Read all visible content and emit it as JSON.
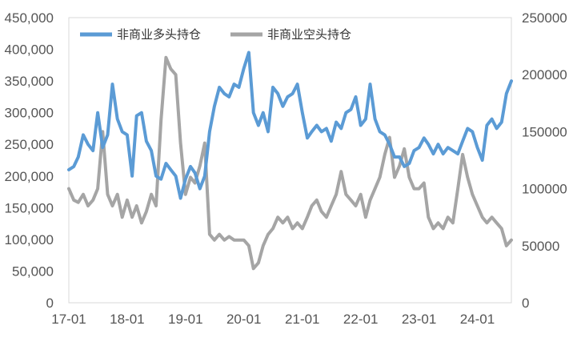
{
  "chart_data": {
    "type": "line",
    "title": "",
    "xlabel": "",
    "ylabel": "",
    "x_ticks": [
      "17-01",
      "18-01",
      "19-01",
      "20-01",
      "21-01",
      "22-01",
      "23-01",
      "24-01"
    ],
    "y_left": {
      "ticks": [
        "0",
        "50,000",
        "100,000",
        "150,000",
        "200,000",
        "250,000",
        "300,000",
        "350,000",
        "400,000",
        "450,000"
      ],
      "lim": [
        0,
        450000
      ]
    },
    "y_right": {
      "ticks": [
        "0",
        "50000",
        "100000",
        "150000",
        "200000",
        "250000"
      ],
      "lim": [
        0,
        250000
      ]
    },
    "legend": {
      "placement": "top-left"
    },
    "grid": false,
    "series": [
      {
        "name": "非商业多头持仓",
        "axis": "left",
        "color": "#5b9bd5",
        "points": [
          [
            "2017-01",
            210000
          ],
          [
            "2017-02",
            215000
          ],
          [
            "2017-03",
            230000
          ],
          [
            "2017-04",
            265000
          ],
          [
            "2017-05",
            250000
          ],
          [
            "2017-06",
            240000
          ],
          [
            "2017-07",
            300000
          ],
          [
            "2017-08",
            245000
          ],
          [
            "2017-09",
            265000
          ],
          [
            "2017-10",
            345000
          ],
          [
            "2017-11",
            290000
          ],
          [
            "2017-12",
            270000
          ],
          [
            "2018-01",
            265000
          ],
          [
            "2018-02",
            200000
          ],
          [
            "2018-03",
            295000
          ],
          [
            "2018-04",
            300000
          ],
          [
            "2018-05",
            255000
          ],
          [
            "2018-06",
            240000
          ],
          [
            "2018-07",
            200000
          ],
          [
            "2018-08",
            195000
          ],
          [
            "2018-09",
            220000
          ],
          [
            "2018-10",
            210000
          ],
          [
            "2018-11",
            200000
          ],
          [
            "2018-12",
            165000
          ],
          [
            "2019-01",
            195000
          ],
          [
            "2019-02",
            215000
          ],
          [
            "2019-03",
            205000
          ],
          [
            "2019-04",
            180000
          ],
          [
            "2019-05",
            200000
          ],
          [
            "2019-06",
            270000
          ],
          [
            "2019-07",
            310000
          ],
          [
            "2019-08",
            340000
          ],
          [
            "2019-09",
            330000
          ],
          [
            "2019-10",
            325000
          ],
          [
            "2019-11",
            345000
          ],
          [
            "2019-12",
            340000
          ],
          [
            "2020-01",
            370000
          ],
          [
            "2020-02",
            395000
          ],
          [
            "2020-03",
            300000
          ],
          [
            "2020-04",
            280000
          ],
          [
            "2020-05",
            300000
          ],
          [
            "2020-06",
            270000
          ],
          [
            "2020-07",
            340000
          ],
          [
            "2020-08",
            330000
          ],
          [
            "2020-09",
            310000
          ],
          [
            "2020-10",
            325000
          ],
          [
            "2020-11",
            330000
          ],
          [
            "2020-12",
            345000
          ],
          [
            "2021-01",
            300000
          ],
          [
            "2021-02",
            260000
          ],
          [
            "2021-03",
            270000
          ],
          [
            "2021-04",
            280000
          ],
          [
            "2021-05",
            270000
          ],
          [
            "2021-06",
            275000
          ],
          [
            "2021-07",
            255000
          ],
          [
            "2021-08",
            285000
          ],
          [
            "2021-09",
            275000
          ],
          [
            "2021-10",
            300000
          ],
          [
            "2021-11",
            305000
          ],
          [
            "2021-12",
            325000
          ],
          [
            "2022-01",
            280000
          ],
          [
            "2022-02",
            290000
          ],
          [
            "2022-03",
            345000
          ],
          [
            "2022-04",
            290000
          ],
          [
            "2022-05",
            270000
          ],
          [
            "2022-06",
            265000
          ],
          [
            "2022-07",
            250000
          ],
          [
            "2022-08",
            230000
          ],
          [
            "2022-09",
            230000
          ],
          [
            "2022-10",
            215000
          ],
          [
            "2022-11",
            220000
          ],
          [
            "2022-12",
            240000
          ],
          [
            "2023-01",
            245000
          ],
          [
            "2023-02",
            260000
          ],
          [
            "2023-03",
            250000
          ],
          [
            "2023-04",
            235000
          ],
          [
            "2023-05",
            250000
          ],
          [
            "2023-06",
            235000
          ],
          [
            "2023-07",
            245000
          ],
          [
            "2023-08",
            240000
          ],
          [
            "2023-09",
            235000
          ],
          [
            "2023-10",
            255000
          ],
          [
            "2023-11",
            275000
          ],
          [
            "2023-12",
            270000
          ],
          [
            "2024-01",
            245000
          ],
          [
            "2024-02",
            225000
          ],
          [
            "2024-03",
            280000
          ],
          [
            "2024-04",
            290000
          ],
          [
            "2024-05",
            275000
          ],
          [
            "2024-06",
            285000
          ],
          [
            "2024-07",
            330000
          ],
          [
            "2024-08",
            350000
          ]
        ]
      },
      {
        "name": "非商业空头持仓",
        "axis": "right",
        "color": "#a5a5a5",
        "points": [
          [
            "2017-01",
            100000
          ],
          [
            "2017-02",
            90000
          ],
          [
            "2017-03",
            88000
          ],
          [
            "2017-04",
            95000
          ],
          [
            "2017-05",
            85000
          ],
          [
            "2017-06",
            90000
          ],
          [
            "2017-07",
            100000
          ],
          [
            "2017-08",
            150000
          ],
          [
            "2017-09",
            95000
          ],
          [
            "2017-10",
            85000
          ],
          [
            "2017-11",
            95000
          ],
          [
            "2017-12",
            75000
          ],
          [
            "2018-01",
            90000
          ],
          [
            "2018-02",
            75000
          ],
          [
            "2018-03",
            85000
          ],
          [
            "2018-04",
            70000
          ],
          [
            "2018-05",
            80000
          ],
          [
            "2018-06",
            95000
          ],
          [
            "2018-07",
            85000
          ],
          [
            "2018-08",
            160000
          ],
          [
            "2018-09",
            215000
          ],
          [
            "2018-10",
            205000
          ],
          [
            "2018-11",
            200000
          ],
          [
            "2018-12",
            140000
          ],
          [
            "2019-01",
            95000
          ],
          [
            "2019-02",
            110000
          ],
          [
            "2019-03",
            105000
          ],
          [
            "2019-04",
            120000
          ],
          [
            "2019-05",
            140000
          ],
          [
            "2019-06",
            60000
          ],
          [
            "2019-07",
            55000
          ],
          [
            "2019-08",
            60000
          ],
          [
            "2019-09",
            55000
          ],
          [
            "2019-10",
            58000
          ],
          [
            "2019-11",
            55000
          ],
          [
            "2019-12",
            55000
          ],
          [
            "2020-01",
            55000
          ],
          [
            "2020-02",
            50000
          ],
          [
            "2020-03",
            30000
          ],
          [
            "2020-04",
            35000
          ],
          [
            "2020-05",
            50000
          ],
          [
            "2020-06",
            60000
          ],
          [
            "2020-07",
            65000
          ],
          [
            "2020-08",
            75000
          ],
          [
            "2020-09",
            70000
          ],
          [
            "2020-10",
            75000
          ],
          [
            "2020-11",
            65000
          ],
          [
            "2020-12",
            70000
          ],
          [
            "2021-01",
            65000
          ],
          [
            "2021-02",
            75000
          ],
          [
            "2021-03",
            85000
          ],
          [
            "2021-04",
            90000
          ],
          [
            "2021-05",
            80000
          ],
          [
            "2021-06",
            75000
          ],
          [
            "2021-07",
            85000
          ],
          [
            "2021-08",
            95000
          ],
          [
            "2021-09",
            115000
          ],
          [
            "2021-10",
            95000
          ],
          [
            "2021-11",
            90000
          ],
          [
            "2021-12",
            85000
          ],
          [
            "2022-01",
            95000
          ],
          [
            "2022-02",
            75000
          ],
          [
            "2022-03",
            90000
          ],
          [
            "2022-04",
            100000
          ],
          [
            "2022-05",
            110000
          ],
          [
            "2022-06",
            130000
          ],
          [
            "2022-07",
            145000
          ],
          [
            "2022-08",
            110000
          ],
          [
            "2022-09",
            120000
          ],
          [
            "2022-10",
            135000
          ],
          [
            "2022-11",
            110000
          ],
          [
            "2022-12",
            100000
          ],
          [
            "2023-01",
            100000
          ],
          [
            "2023-02",
            105000
          ],
          [
            "2023-03",
            75000
          ],
          [
            "2023-04",
            65000
          ],
          [
            "2023-05",
            70000
          ],
          [
            "2023-06",
            65000
          ],
          [
            "2023-07",
            75000
          ],
          [
            "2023-08",
            70000
          ],
          [
            "2023-09",
            100000
          ],
          [
            "2023-10",
            130000
          ],
          [
            "2023-11",
            110000
          ],
          [
            "2023-12",
            95000
          ],
          [
            "2024-01",
            85000
          ],
          [
            "2024-02",
            75000
          ],
          [
            "2024-03",
            70000
          ],
          [
            "2024-04",
            75000
          ],
          [
            "2024-05",
            70000
          ],
          [
            "2024-06",
            65000
          ],
          [
            "2024-07",
            50000
          ],
          [
            "2024-08",
            55000
          ]
        ]
      }
    ]
  }
}
